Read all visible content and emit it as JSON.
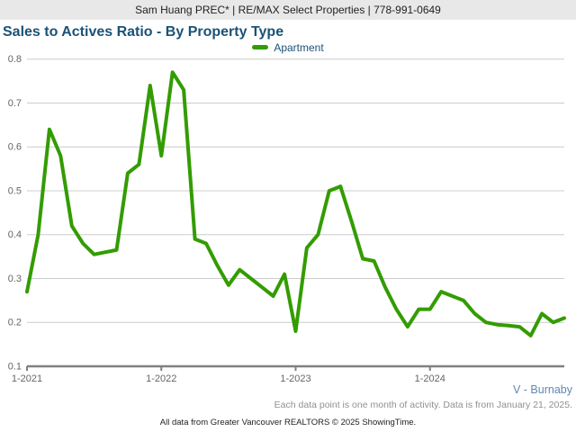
{
  "header": {
    "text": "Sam Huang PREC* | RE/MAX Select Properties | 778-991-0649"
  },
  "footer": {
    "region": "V - Burnaby",
    "note": "Each data point is one month of activity. Data is from January 21, 2025.",
    "attribution": "All data from Greater Vancouver REALTORS © 2025 ShowingTime."
  },
  "colors": {
    "line": "#339c00",
    "title": "#1a5276",
    "legend_text": "#1a5276",
    "header_bg": "#e8e8e8",
    "header_text": "#222222",
    "grid": "#cccccc",
    "axis": "#808080",
    "tick_text": "#666666",
    "region_text": "#5e88b0",
    "note_text": "#909090",
    "attribution_text": "#222222"
  },
  "chart_data": {
    "type": "line",
    "title": "Sales to Actives Ratio - By Property Type",
    "xlabel": "",
    "ylabel": "",
    "ylim": [
      0.1,
      0.8
    ],
    "ytick_step": 0.1,
    "grid": true,
    "legend_position": "top-center",
    "x": [
      "2021-01",
      "2021-02",
      "2021-03",
      "2021-04",
      "2021-05",
      "2021-06",
      "2021-07",
      "2021-08",
      "2021-09",
      "2021-10",
      "2021-11",
      "2021-12",
      "2022-01",
      "2022-02",
      "2022-03",
      "2022-04",
      "2022-05",
      "2022-06",
      "2022-07",
      "2022-08",
      "2022-09",
      "2022-10",
      "2022-11",
      "2022-12",
      "2023-01",
      "2023-02",
      "2023-03",
      "2023-04",
      "2023-05",
      "2023-06",
      "2023-07",
      "2023-08",
      "2023-09",
      "2023-10",
      "2023-11",
      "2023-12",
      "2024-01",
      "2024-02",
      "2024-03",
      "2024-04",
      "2024-05",
      "2024-06",
      "2024-07",
      "2024-08",
      "2024-09",
      "2024-10",
      "2024-11",
      "2024-12",
      "2025-01"
    ],
    "x_ticks": [
      {
        "label": "1-2021",
        "index": 0
      },
      {
        "label": "1-2022",
        "index": 12
      },
      {
        "label": "1-2023",
        "index": 24
      },
      {
        "label": "1-2024",
        "index": 36
      }
    ],
    "series": [
      {
        "name": "Apartment",
        "color": "#339c00",
        "values": [
          0.27,
          0.4,
          0.64,
          0.58,
          0.42,
          0.38,
          0.355,
          0.36,
          0.365,
          0.54,
          0.56,
          0.74,
          0.58,
          0.77,
          0.73,
          0.39,
          0.38,
          0.33,
          0.285,
          0.32,
          0.3,
          0.28,
          0.26,
          0.31,
          0.18,
          0.37,
          0.4,
          0.5,
          0.51,
          0.43,
          0.345,
          0.34,
          0.28,
          0.23,
          0.19,
          0.23,
          0.23,
          0.27,
          0.26,
          0.25,
          0.22,
          0.2,
          0.195,
          0.193,
          0.19,
          0.17,
          0.22,
          0.2,
          0.21
        ]
      }
    ]
  }
}
